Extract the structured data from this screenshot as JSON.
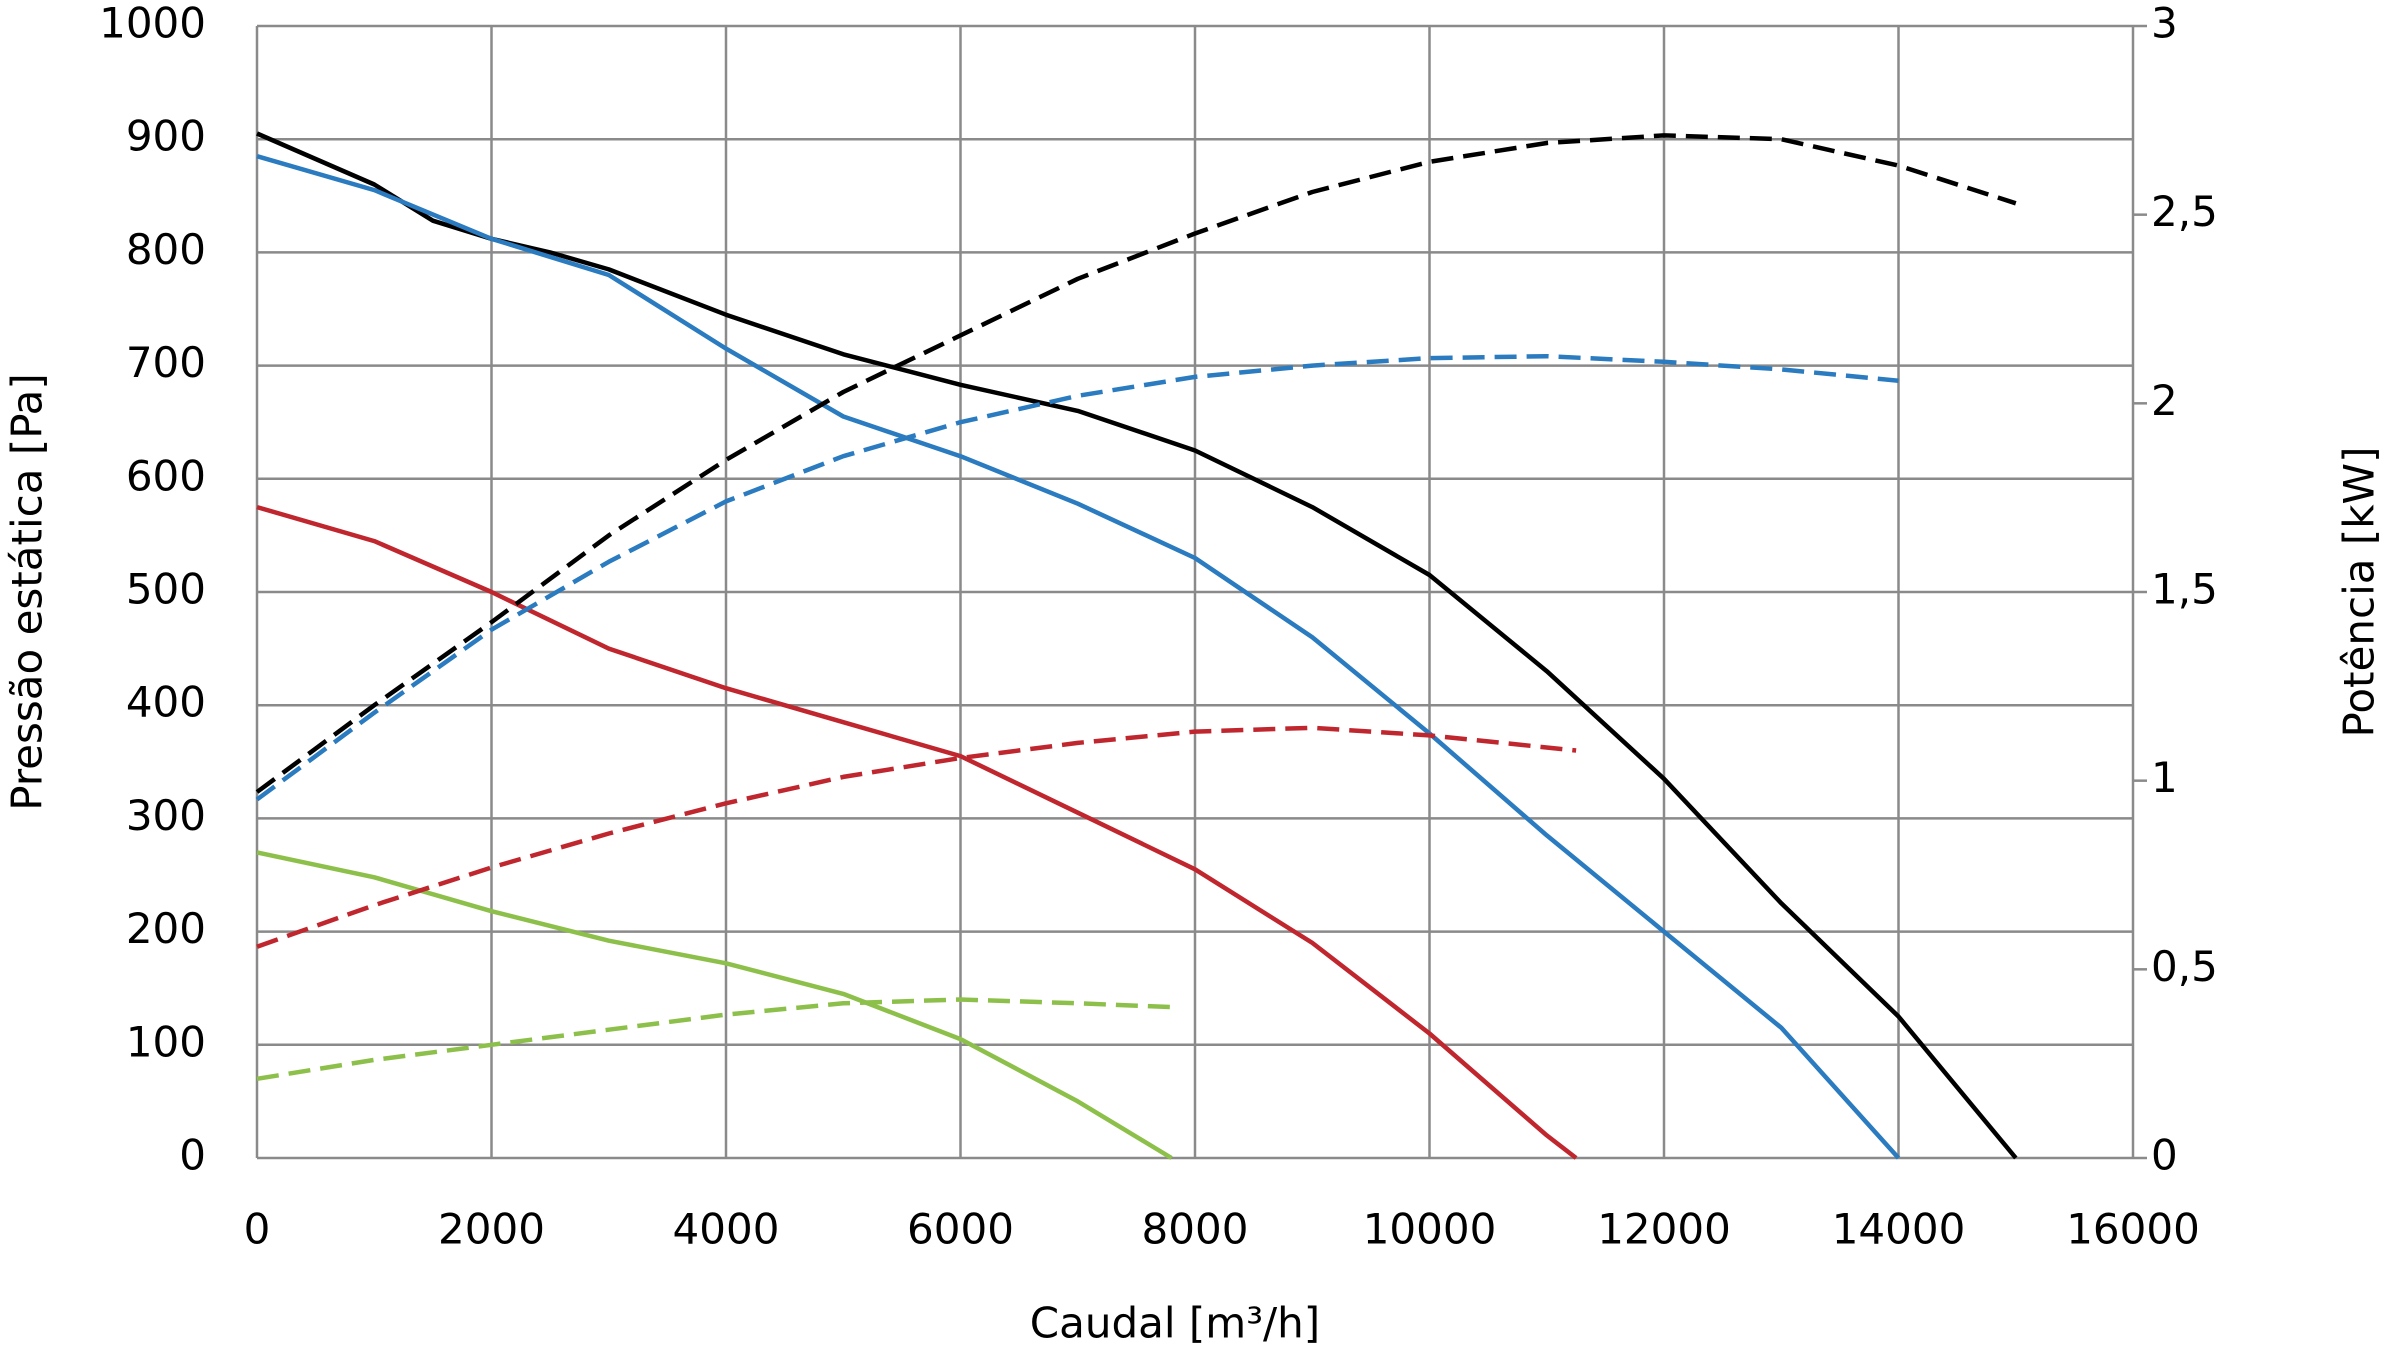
{
  "chart_data": {
    "type": "line",
    "x_label": "Caudal [m³/h]",
    "y_label": "Pressão estática [Pa]",
    "y2_label": "Potência [kW]",
    "xlim": [
      0,
      16000
    ],
    "xticks": [
      0,
      2000,
      4000,
      6000,
      8000,
      10000,
      12000,
      14000,
      16000
    ],
    "ylim": [
      0,
      1000
    ],
    "yticks": [
      0,
      100,
      200,
      300,
      400,
      500,
      600,
      700,
      800,
      900,
      1000
    ],
    "y2lim": [
      0,
      3
    ],
    "y2ticks": [
      0,
      {
        "value": 0.5,
        "label": "0,5"
      },
      1,
      {
        "value": 1.5,
        "label": "1,5"
      },
      2,
      {
        "value": 2.5,
        "label": "2,5"
      },
      3
    ],
    "grid": true,
    "series": [
      {
        "color": "#000000",
        "dashed": false,
        "x": [
          0,
          1000,
          1500,
          2000,
          2500,
          3000,
          4000,
          5000,
          6000,
          7000,
          8000,
          9000,
          10000,
          11000,
          12000,
          13000,
          14000,
          15000
        ],
        "values": [
          905,
          860,
          828,
          812,
          800,
          785,
          745,
          710,
          683,
          660,
          625,
          575,
          515,
          430,
          335,
          225,
          125,
          0
        ]
      },
      {
        "color": "#2a7bbf",
        "dashed": false,
        "x": [
          0,
          1000,
          2000,
          3000,
          4000,
          5000,
          6000,
          7000,
          8000,
          9000,
          10000,
          11000,
          12000,
          13000,
          14000
        ],
        "values": [
          885,
          855,
          812,
          780,
          715,
          655,
          620,
          578,
          530,
          460,
          375,
          285,
          200,
          115,
          0
        ]
      },
      {
        "color": "#c0262d",
        "dashed": false,
        "x": [
          0,
          1000,
          2000,
          3000,
          4000,
          5000,
          6000,
          7000,
          8000,
          9000,
          10000,
          11000,
          11250
        ],
        "values": [
          575,
          545,
          500,
          450,
          415,
          385,
          355,
          305,
          255,
          190,
          110,
          20,
          0
        ]
      },
      {
        "color": "#8dc04a",
        "dashed": false,
        "x": [
          0,
          1000,
          2000,
          3000,
          4000,
          5000,
          6000,
          7000,
          7800
        ],
        "values": [
          270,
          248,
          218,
          192,
          172,
          145,
          105,
          50,
          0
        ]
      },
      {
        "color": "#000000",
        "dashed": true,
        "axis": "y2",
        "x": [
          0,
          1000,
          2000,
          3000,
          4000,
          5000,
          6000,
          7000,
          8000,
          9000,
          10000,
          11000,
          12000,
          13000,
          14000,
          15000
        ],
        "values": [
          0.97,
          1.2,
          1.42,
          1.65,
          1.85,
          2.03,
          2.18,
          2.33,
          2.45,
          2.56,
          2.64,
          2.69,
          2.71,
          2.7,
          2.63,
          2.53
        ]
      },
      {
        "color": "#2a7bbf",
        "dashed": true,
        "axis": "y2",
        "x": [
          0,
          1000,
          2000,
          3000,
          4000,
          5000,
          6000,
          7000,
          8000,
          9000,
          10000,
          11000,
          12000,
          13000,
          14000
        ],
        "values": [
          0.95,
          1.18,
          1.4,
          1.58,
          1.74,
          1.86,
          1.95,
          2.02,
          2.07,
          2.1,
          2.12,
          2.125,
          2.11,
          2.09,
          2.06
        ]
      },
      {
        "color": "#c0262d",
        "dashed": true,
        "axis": "y2",
        "x": [
          0,
          1000,
          2000,
          3000,
          4000,
          5000,
          6000,
          7000,
          8000,
          9000,
          10000,
          11250
        ],
        "values": [
          0.56,
          0.67,
          0.77,
          0.86,
          0.94,
          1.01,
          1.06,
          1.1,
          1.13,
          1.14,
          1.12,
          1.08
        ]
      },
      {
        "color": "#8dc04a",
        "dashed": true,
        "axis": "y2",
        "x": [
          0,
          1000,
          2000,
          3000,
          4000,
          5000,
          6000,
          7000,
          7800
        ],
        "values": [
          0.21,
          0.26,
          0.3,
          0.34,
          0.38,
          0.41,
          0.42,
          0.41,
          0.4
        ]
      }
    ]
  }
}
